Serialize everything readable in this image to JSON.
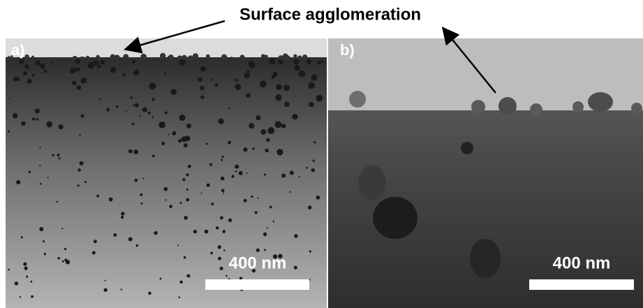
{
  "title": "Surface agglomeration",
  "panels": [
    {
      "label": "a)",
      "scale_bar": "400 nm"
    },
    {
      "label": "b)",
      "scale_bar": "400 nm"
    }
  ]
}
